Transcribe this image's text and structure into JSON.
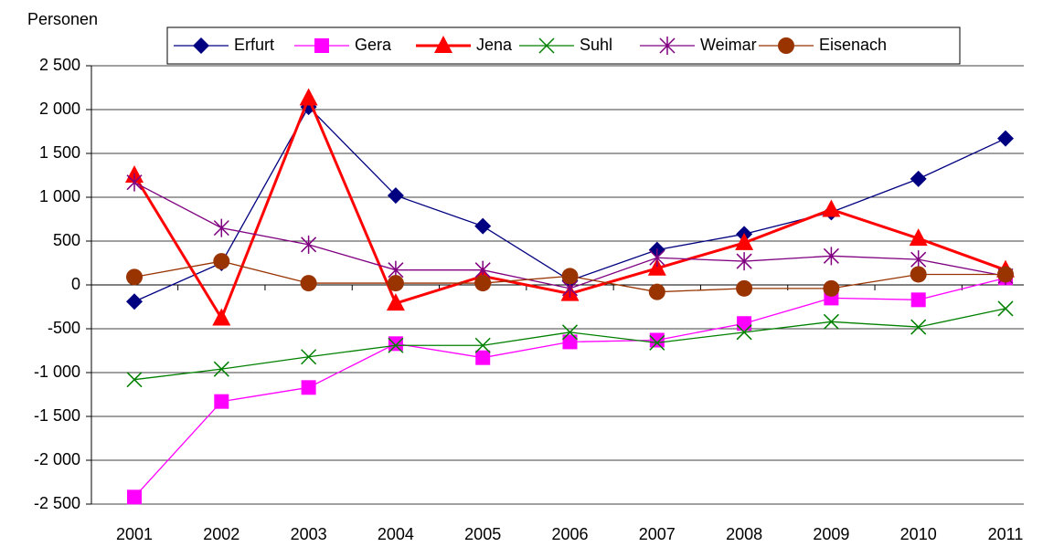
{
  "chart_data": {
    "type": "line",
    "y_label": "Personen",
    "categories": [
      "2001",
      "2002",
      "2003",
      "2004",
      "2005",
      "2006",
      "2007",
      "2008",
      "2009",
      "2010",
      "2011"
    ],
    "series": [
      {
        "name": "Erfurt",
        "color": "#000080",
        "marker": "diamond",
        "line_width": 1.3,
        "values": [
          -190,
          250,
          2030,
          1020,
          670,
          50,
          400,
          580,
          830,
          1210,
          1670
        ]
      },
      {
        "name": "Gera",
        "color": "#ff00ff",
        "marker": "square",
        "line_width": 1.3,
        "values": [
          -2420,
          -1330,
          -1170,
          -670,
          -830,
          -650,
          -630,
          -440,
          -150,
          -170,
          80
        ]
      },
      {
        "name": "Jena",
        "color": "#ff0000",
        "marker": "triangle",
        "line_width": 3,
        "values": [
          1250,
          -380,
          2130,
          -210,
          100,
          -100,
          190,
          480,
          860,
          530,
          170
        ]
      },
      {
        "name": "Suhl",
        "color": "#008000",
        "marker": "x",
        "line_width": 1.3,
        "values": [
          -1080,
          -960,
          -820,
          -690,
          -690,
          -540,
          -660,
          -540,
          -420,
          -480,
          -270
        ]
      },
      {
        "name": "Weimar",
        "color": "#800080",
        "marker": "star",
        "line_width": 1.3,
        "values": [
          1170,
          650,
          460,
          170,
          170,
          -40,
          310,
          270,
          330,
          290,
          100
        ]
      },
      {
        "name": "Eisenach",
        "color": "#993300",
        "marker": "circle",
        "line_width": 1.3,
        "values": [
          90,
          270,
          20,
          20,
          20,
          100,
          -80,
          -40,
          -40,
          120,
          120
        ]
      }
    ],
    "ylim": [
      -2500,
      2500
    ],
    "yticks": [
      {
        "value": -2500,
        "label": "-2 500"
      },
      {
        "value": -2000,
        "label": "-2 000"
      },
      {
        "value": -1500,
        "label": "-1 500"
      },
      {
        "value": -1000,
        "label": "-1 000"
      },
      -500,
      0,
      500,
      {
        "value": 1000,
        "label": "1 000"
      },
      {
        "value": 1500,
        "label": "1 500"
      },
      {
        "value": 2000,
        "label": "2 000"
      },
      {
        "value": 2500,
        "label": "2 500"
      }
    ],
    "grid": true,
    "legend": "top"
  }
}
